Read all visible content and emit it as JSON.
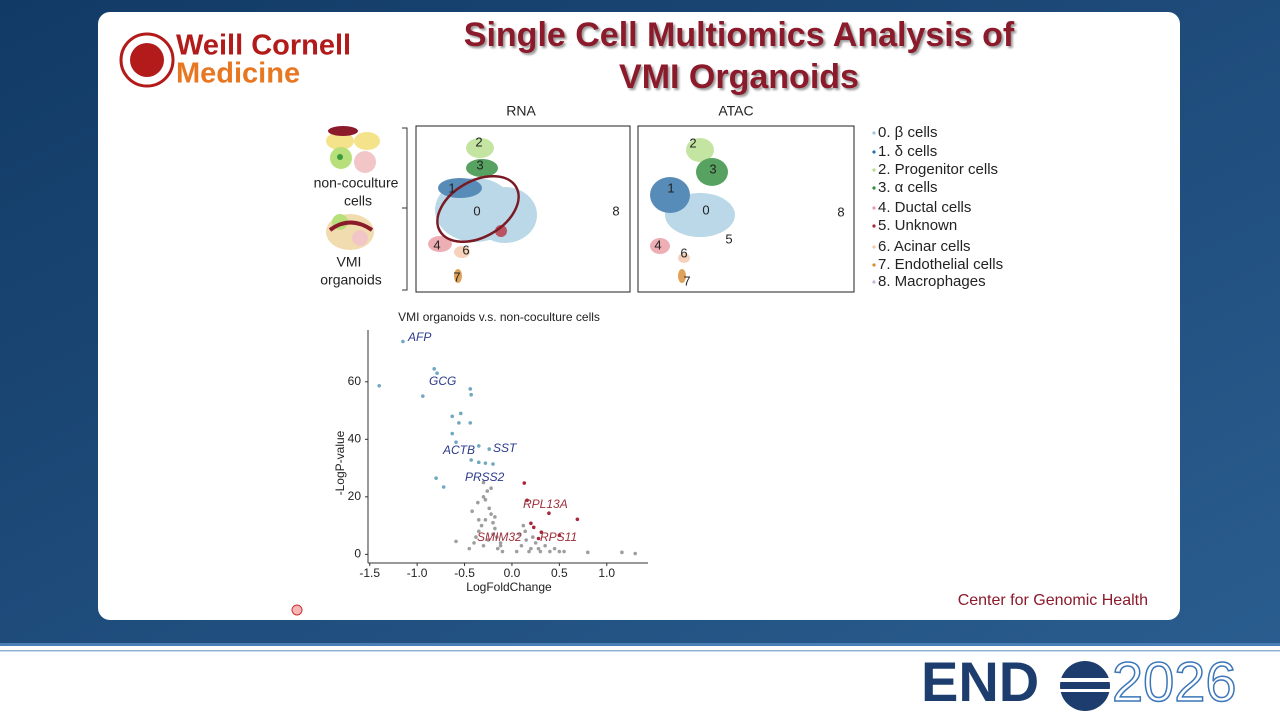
{
  "logo": {
    "line1": "Weill Cornell",
    "line2": "Medicine"
  },
  "title": [
    "Single Cell Multiomics Analysis of",
    "VMI Organoids"
  ],
  "umap": {
    "panels": [
      {
        "title": "RNA",
        "clusters": [
          "2",
          "3",
          "1",
          "0",
          "8",
          "4",
          "6",
          "7"
        ]
      },
      {
        "title": "ATAC",
        "clusters": [
          "2",
          "3",
          "1",
          "0",
          "8",
          "5",
          "4",
          "6",
          "7"
        ]
      }
    ],
    "groups": [
      [
        "non-coculture",
        "cells"
      ],
      [
        "VMI",
        "organoids"
      ]
    ]
  },
  "legend": [
    "0. β cells",
    "1. δ cells",
    "2. Progenitor cells",
    "3. α cells",
    "4. Ductal cells",
    "5. Unknown",
    "6. Acinar cells",
    "7. Endothelial cells",
    "8. Macrophages"
  ],
  "chart_data": {
    "type": "scatter",
    "title": "VMI organoids v.s. non-coculture cells",
    "x_label": "LogFoldChange",
    "y_label": "-LogP-value",
    "xlim": [
      -1.55,
      1.435
    ],
    "ylim": [
      -3,
      78
    ],
    "xticks": [
      -1.5,
      {
        "value": -1.0,
        "label": "-1.0"
      },
      -0.5,
      {
        "value": 0.0,
        "label": "0.0"
      },
      0.5,
      {
        "value": 1.0,
        "label": "1.0"
      }
    ],
    "yticks": [
      0,
      20,
      40,
      60
    ],
    "series": [
      {
        "color": "#9e9e9e",
        "x": [
          -0.45,
          -0.4,
          -0.38,
          -0.35,
          -0.32,
          -0.3,
          -0.28,
          -0.25,
          -0.22,
          -0.2,
          -0.18,
          -0.15,
          -0.12,
          -0.1,
          -0.42,
          -0.36,
          -0.3,
          -0.26,
          -0.2,
          -0.16,
          -0.12,
          -0.3,
          -0.24,
          -0.18,
          -0.35,
          -0.28,
          -0.22,
          0.05,
          0.1,
          0.15,
          0.2,
          0.25,
          0.3,
          0.35,
          0.08,
          0.14,
          0.22,
          0.28,
          0.12,
          0.18,
          0.4,
          0.45,
          0.5,
          0.55,
          0.8,
          1.16,
          1.3,
          -0.59
        ],
        "y": [
          2,
          4,
          6,
          8,
          10,
          3,
          12,
          5,
          14,
          7,
          9,
          2,
          4,
          1,
          15,
          18,
          20,
          22,
          11,
          6,
          3,
          25,
          16,
          13,
          12,
          19,
          23,
          1,
          3,
          5,
          2,
          4,
          1,
          3,
          7,
          8,
          6,
          2,
          10,
          1,
          1,
          2,
          1,
          1,
          0.7,
          0.7,
          0.3,
          4.5
        ]
      },
      {
        "color": "#6fa8c0",
        "x": [
          -1.15,
          -1.4,
          -0.82,
          -0.79,
          -0.94,
          -0.44,
          -0.43,
          -0.54,
          -0.63,
          -0.56,
          -0.44,
          -0.63,
          -0.59,
          -0.35,
          -0.24,
          -0.43,
          -0.35,
          -0.28,
          -0.2,
          -0.8,
          -0.72
        ],
        "y": [
          74,
          58.6,
          64.5,
          63,
          55,
          57.5,
          55.5,
          49,
          48,
          45.7,
          45.7,
          42,
          39,
          37.7,
          36.6,
          32.8,
          32,
          31.7,
          31.4,
          26.5,
          23.4
        ]
      },
      {
        "color": "#a8283a",
        "x": [
          0.13,
          0.16,
          0.39,
          0.69,
          0.2,
          0.23,
          0.31,
          0.5,
          0.28
        ],
        "y": [
          24.8,
          18.8,
          14.3,
          12.2,
          10.8,
          9.4,
          7.7,
          6.6,
          5.5
        ]
      }
    ],
    "annotations": [
      "AFP",
      "GCG",
      "ACTB",
      "SST",
      "PRSS2",
      "RPL13A",
      "SMIM32",
      "RPS11"
    ]
  },
  "footer": "Center for Genomic Health",
  "brand": {
    "left": "END",
    "right": "2026"
  }
}
